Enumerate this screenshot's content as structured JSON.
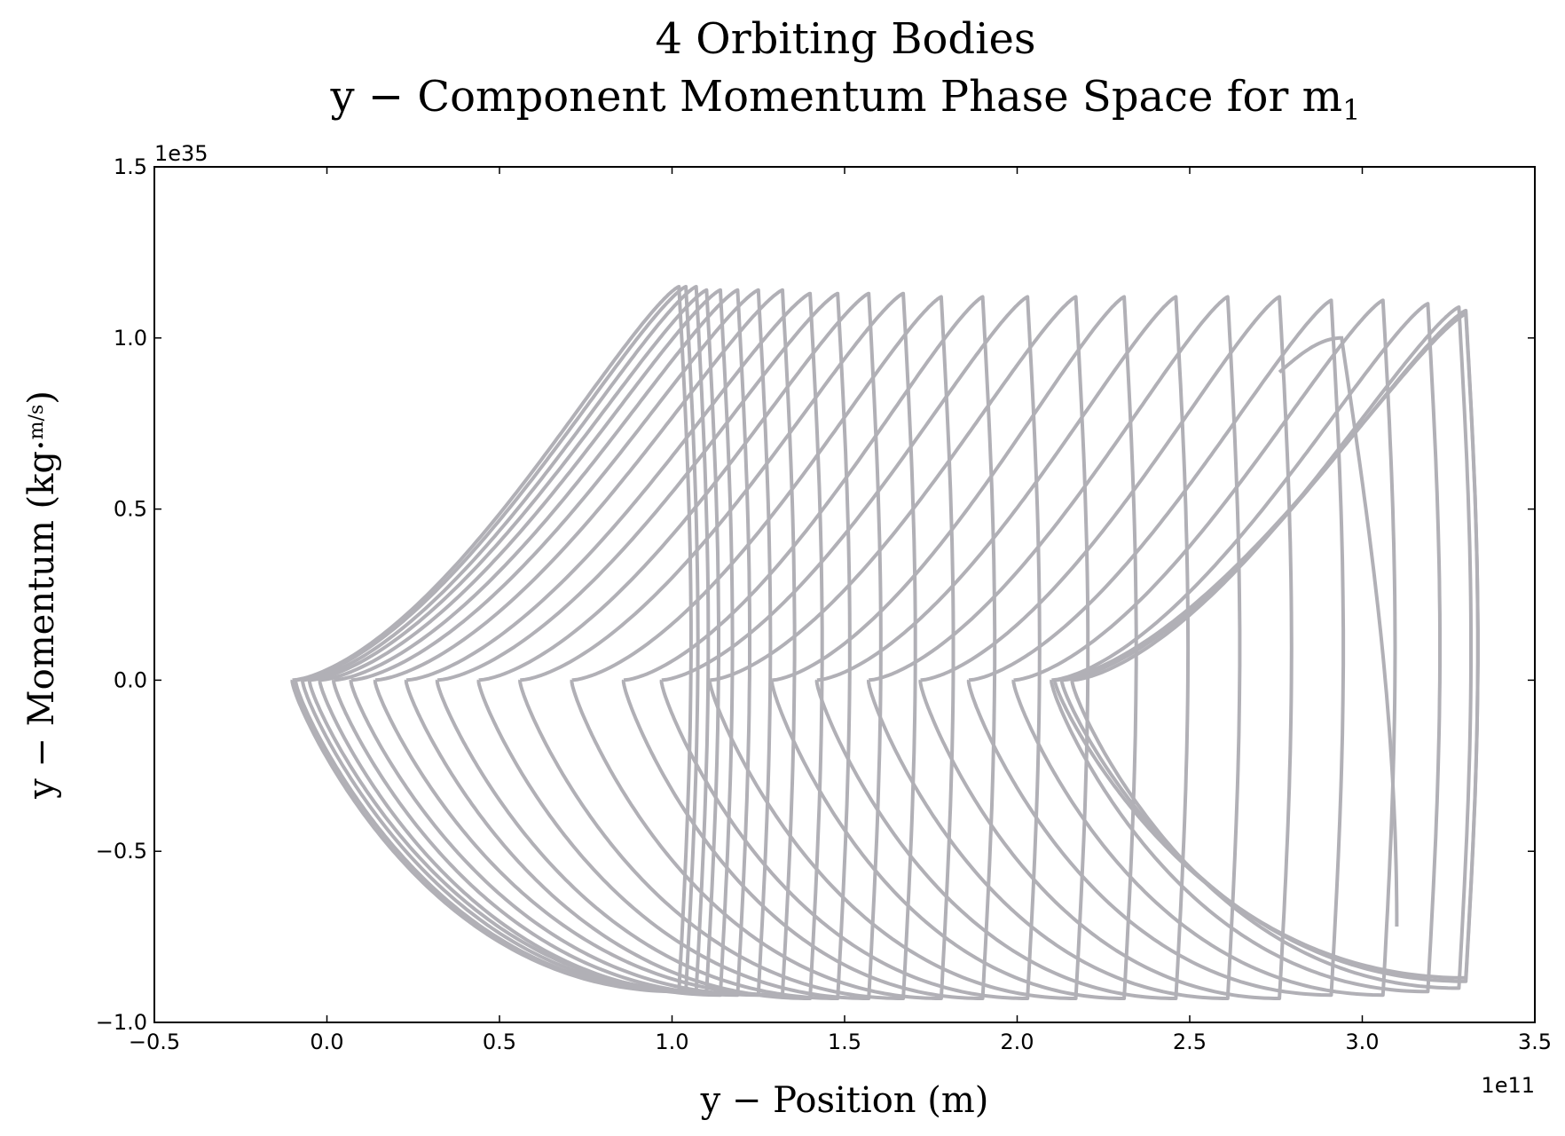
{
  "chart_data": {
    "type": "line",
    "title_line1": "4 Orbiting Bodies",
    "title_line2": "y − Component Momentum Phase Space for m",
    "title_subscript": "1",
    "xlabel": "y − Position (m)",
    "ylabel_prefix": "y − Momentum (kg·",
    "ylabel_frac_num": "m",
    "ylabel_frac_den": "s",
    "ylabel_suffix": ")",
    "x_offset_label": "1e11",
    "y_offset_label": "1e35",
    "xlim": [
      -0.5,
      3.5
    ],
    "ylim": [
      -1.0,
      1.5
    ],
    "x_scale": 100000000000,
    "y_scale": 1e+35,
    "x_ticks": [
      -0.5,
      0.0,
      0.5,
      1.0,
      1.5,
      2.0,
      2.5,
      3.0,
      3.5
    ],
    "x_tick_labels": [
      "−0.5",
      "0.0",
      "0.5",
      "1.0",
      "1.5",
      "2.0",
      "2.5",
      "3.0",
      "3.5"
    ],
    "y_ticks": [
      -1.0,
      -0.5,
      0.0,
      0.5,
      1.0,
      1.5
    ],
    "y_tick_labels": [
      "−1.0",
      "−0.5",
      "0.0",
      "0.5",
      "1.0",
      "1.5"
    ],
    "grid": false,
    "line_color": "#b1b0b6",
    "series": [
      {
        "description": "phase-space trajectory, spiral of successive loops; each loop defined by leftmost turning x, rightmost turning x, top momentum, bottom momentum",
        "loops": [
          {
            "x_left": -0.1,
            "x_right": 1.02,
            "p_top": 1.15,
            "p_bot": -0.91
          },
          {
            "x_left": -0.09,
            "x_right": 1.04,
            "p_top": 1.15,
            "p_bot": -0.91
          },
          {
            "x_left": -0.07,
            "x_right": 1.07,
            "p_top": 1.15,
            "p_bot": -0.91
          },
          {
            "x_left": -0.05,
            "x_right": 1.1,
            "p_top": 1.14,
            "p_bot": -0.91
          },
          {
            "x_left": -0.02,
            "x_right": 1.14,
            "p_top": 1.14,
            "p_bot": -0.92
          },
          {
            "x_left": 0.02,
            "x_right": 1.19,
            "p_top": 1.14,
            "p_bot": -0.92
          },
          {
            "x_left": 0.07,
            "x_right": 1.25,
            "p_top": 1.14,
            "p_bot": -0.92
          },
          {
            "x_left": 0.14,
            "x_right": 1.32,
            "p_top": 1.14,
            "p_bot": -0.92
          },
          {
            "x_left": 0.23,
            "x_right": 1.4,
            "p_top": 1.13,
            "p_bot": -0.93
          },
          {
            "x_left": 0.32,
            "x_right": 1.48,
            "p_top": 1.13,
            "p_bot": -0.93
          },
          {
            "x_left": 0.44,
            "x_right": 1.57,
            "p_top": 1.13,
            "p_bot": -0.93
          },
          {
            "x_left": 0.56,
            "x_right": 1.67,
            "p_top": 1.13,
            "p_bot": -0.93
          },
          {
            "x_left": 0.71,
            "x_right": 1.78,
            "p_top": 1.12,
            "p_bot": -0.93
          },
          {
            "x_left": 0.86,
            "x_right": 1.9,
            "p_top": 1.12,
            "p_bot": -0.93
          },
          {
            "x_left": 0.97,
            "x_right": 2.03,
            "p_top": 1.12,
            "p_bot": -0.93
          },
          {
            "x_left": 1.11,
            "x_right": 2.17,
            "p_top": 1.12,
            "p_bot": -0.93
          },
          {
            "x_left": 1.29,
            "x_right": 2.31,
            "p_top": 1.12,
            "p_bot": -0.93
          },
          {
            "x_left": 1.42,
            "x_right": 2.46,
            "p_top": 1.12,
            "p_bot": -0.93
          },
          {
            "x_left": 1.57,
            "x_right": 2.61,
            "p_top": 1.12,
            "p_bot": -0.93
          },
          {
            "x_left": 1.72,
            "x_right": 2.76,
            "p_top": 1.12,
            "p_bot": -0.93
          },
          {
            "x_left": 1.86,
            "x_right": 2.91,
            "p_top": 1.11,
            "p_bot": -0.92
          },
          {
            "x_left": 1.99,
            "x_right": 3.06,
            "p_top": 1.11,
            "p_bot": -0.92
          },
          {
            "x_left": 2.1,
            "x_right": 3.19,
            "p_top": 1.1,
            "p_bot": -0.91
          },
          {
            "x_left": 2.16,
            "x_right": 3.28,
            "p_top": 1.09,
            "p_bot": -0.9
          },
          {
            "x_left": 2.13,
            "x_right": 3.3,
            "p_top": 1.08,
            "p_bot": -0.88
          },
          {
            "x_left": 2.11,
            "x_right": 3.3,
            "p_top": 1.07,
            "p_bot": -0.87
          }
        ],
        "final_arc": {
          "x_start": 2.76,
          "x_peak": 2.94,
          "p_peak": 1.0,
          "x_end": 3.1,
          "p_end": -0.72
        }
      }
    ]
  }
}
